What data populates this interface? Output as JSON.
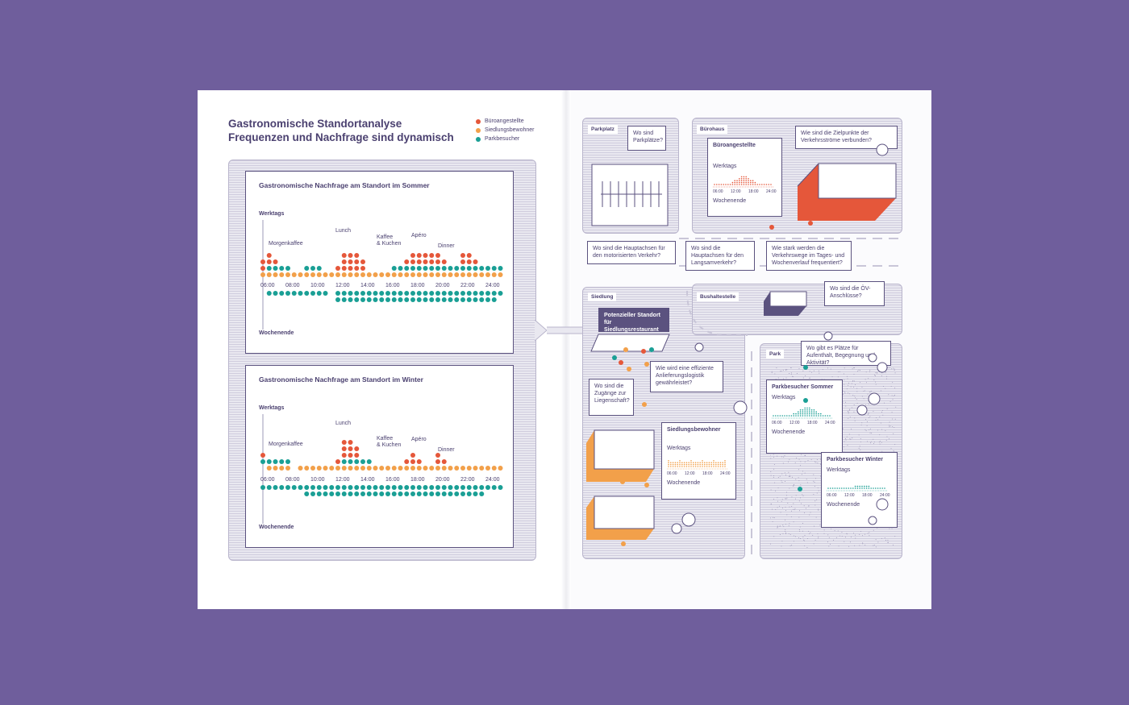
{
  "heading": {
    "line1": "Gastronomische Standortanalyse",
    "line2": "Frequenzen und Nachfrage sind dynamisch"
  },
  "legend": [
    {
      "label": "Büroangestellte",
      "color": "#e5573a"
    },
    {
      "label": "Siedlungsbewohner",
      "color": "#f2a04a"
    },
    {
      "label": "Parkbesucher",
      "color": "#1a9f95"
    }
  ],
  "chart_data": [
    {
      "type": "scatter",
      "title": "Gastronomische Nachfrage am Standort im Sommer",
      "top_label": "Werktags",
      "bottom_label": "Wochenende",
      "x_ticks": [
        "06:00",
        "08:00",
        "10:00",
        "12:00",
        "14:00",
        "16:00",
        "18:00",
        "20:00",
        "22:00",
        "24:00"
      ],
      "annotations": [
        "Morgenkaffee",
        "Lunch",
        "Kaffee & Kuchen",
        "Apéro",
        "Dinner"
      ],
      "weekday_orange": [
        3,
        1,
        1,
        1,
        1,
        1,
        1,
        1,
        1,
        1,
        1,
        1,
        1,
        1,
        1,
        1,
        1,
        1,
        1,
        1,
        1,
        1,
        1,
        1,
        1,
        1,
        1,
        1,
        1,
        1,
        1,
        1,
        1,
        1,
        1,
        1,
        1,
        1,
        1
      ],
      "weekday_teal": [
        0,
        1,
        1,
        1,
        1,
        0,
        0,
        1,
        1,
        1,
        0,
        0,
        0,
        0,
        0,
        0,
        0,
        0,
        0,
        0,
        0,
        1,
        1,
        1,
        1,
        1,
        1,
        1,
        1,
        1,
        1,
        1,
        1,
        1,
        1,
        1,
        1,
        1,
        1
      ],
      "weekday_red": [
        2,
        2,
        1,
        0,
        0,
        0,
        0,
        0,
        0,
        0,
        0,
        0,
        1,
        3,
        3,
        3,
        2,
        0,
        0,
        0,
        0,
        0,
        0,
        1,
        2,
        2,
        2,
        2,
        2,
        1,
        0,
        0,
        2,
        2,
        1,
        0,
        0,
        0,
        0
      ],
      "weekend_teal": [
        0,
        1,
        1,
        1,
        1,
        1,
        1,
        1,
        1,
        1,
        1,
        0,
        1,
        1,
        1,
        1,
        1,
        1,
        1,
        1,
        1,
        2,
        2,
        2,
        2,
        1,
        1,
        1,
        1,
        1,
        1,
        1,
        1,
        1,
        1,
        1,
        1,
        1,
        1
      ],
      "weekend_teal_indent": [
        0,
        0,
        0,
        0,
        0,
        0,
        0,
        0,
        0,
        0,
        0,
        0,
        1,
        1,
        1,
        1,
        1,
        1,
        1,
        1,
        1,
        1,
        1,
        1,
        1,
        1,
        1,
        1,
        1,
        1,
        1,
        1,
        1,
        1,
        1,
        1,
        1,
        1,
        1
      ],
      "weekend_orange": []
    },
    {
      "type": "scatter",
      "title": "Gastronomische Nachfrage am Standort im Winter",
      "top_label": "Werktags",
      "bottom_label": "Wochenende",
      "x_ticks": [
        "06:00",
        "08:00",
        "10:00",
        "12:00",
        "14:00",
        "16:00",
        "18:00",
        "20:00",
        "22:00",
        "24:00"
      ],
      "annotations": [
        "Morgenkaffee",
        "Lunch",
        "Kaffee & Kuchen",
        "Apéro",
        "Dinner"
      ],
      "weekday_orange": [
        0,
        1,
        1,
        1,
        1,
        0,
        1,
        1,
        1,
        1,
        1,
        1,
        1,
        1,
        1,
        1,
        1,
        1,
        1,
        1,
        1,
        1,
        1,
        1,
        1,
        1,
        1,
        1,
        1,
        1,
        1,
        1,
        1,
        1,
        1,
        1,
        1,
        1,
        1
      ],
      "weekday_teal": [
        1,
        1,
        1,
        1,
        1,
        0,
        0,
        0,
        0,
        0,
        0,
        0,
        0,
        1,
        1,
        1,
        1,
        1,
        0,
        0,
        0,
        0,
        0,
        0,
        0,
        0,
        0,
        0,
        0,
        0,
        0,
        0,
        0,
        0,
        0,
        0,
        0,
        0,
        0
      ],
      "weekday_red": [
        1,
        0,
        0,
        0,
        0,
        0,
        0,
        0,
        0,
        0,
        0,
        0,
        1,
        3,
        3,
        2,
        0,
        0,
        0,
        0,
        0,
        0,
        0,
        1,
        2,
        1,
        0,
        0,
        2,
        1,
        0,
        0,
        0,
        0,
        0,
        0,
        0,
        0,
        0
      ],
      "weekend_teal": [
        1,
        1,
        1,
        1,
        1,
        1,
        1,
        1,
        1,
        1,
        1,
        1,
        1,
        1,
        1,
        1,
        1,
        1,
        1,
        1,
        1,
        1,
        1,
        1,
        1,
        1,
        1,
        1,
        1,
        1,
        1,
        1,
        1,
        1,
        1,
        1,
        1,
        1,
        1
      ],
      "weekend_teal_indent": [],
      "weekend_orange": [
        0,
        0,
        0,
        0,
        0,
        0,
        0,
        0,
        0,
        0,
        0,
        0,
        0,
        0,
        0,
        0,
        0,
        0,
        0,
        0,
        0,
        0,
        0,
        0,
        0,
        0,
        0,
        0,
        0,
        0,
        0,
        0,
        0,
        0,
        0,
        0,
        0,
        0,
        0
      ]
    }
  ],
  "map": {
    "parkplatz": {
      "tag": "Parkplatz",
      "question": "Wo sind Parkplätze?"
    },
    "buerohaus": {
      "tag": "Bürohaus",
      "question": "Wie sind die Zielpunkte der Verkehrsströme verbunden?",
      "card_title": "Büroangestellte",
      "card_top": "Werktags",
      "card_bottom": "Wochenende",
      "ticks": [
        "06:00",
        "12:00",
        "18:00",
        "24:00"
      ]
    },
    "q_haupt": "Wo sind die Hauptachsen für den motorisierten Verkehr?",
    "q_langsam": "Wo sind die Hauptachsen für den Langsamverkehr?",
    "q_frequent": "Wie stark werden die Verkehrswege im Tages- und Wochenverlauf frequentiert?",
    "siedlung": {
      "tag": "Siedlung",
      "highlight": "Potenzieller Standort für Siedlungsrestaurant",
      "q_logistik": "Wie wird eine effiziente Anlieferungslogistik gewährleistet?",
      "q_zugang": "Wo sind die Zugänge zur Liegenschaft?",
      "card_title": "Siedlungsbewohner",
      "card_top": "Werktags",
      "card_bottom": "Wochenende",
      "ticks": [
        "06:00",
        "12:00",
        "18:00",
        "24:00"
      ]
    },
    "bus": {
      "tag": "Bushaltestelle",
      "question": "Wo sind die ÖV-Anschlüsse?"
    },
    "park": {
      "tag": "Park",
      "question": "Wo gibt es Plätze für Aufenthalt, Begegnung und Aktivität?",
      "card1_title": "Parkbesucher Sommer",
      "card2_title": "Parkbesucher Winter",
      "card_top": "Werktags",
      "card_bottom": "Wochenende",
      "ticks": [
        "06:00",
        "12:00",
        "18:00",
        "24:00"
      ]
    }
  }
}
